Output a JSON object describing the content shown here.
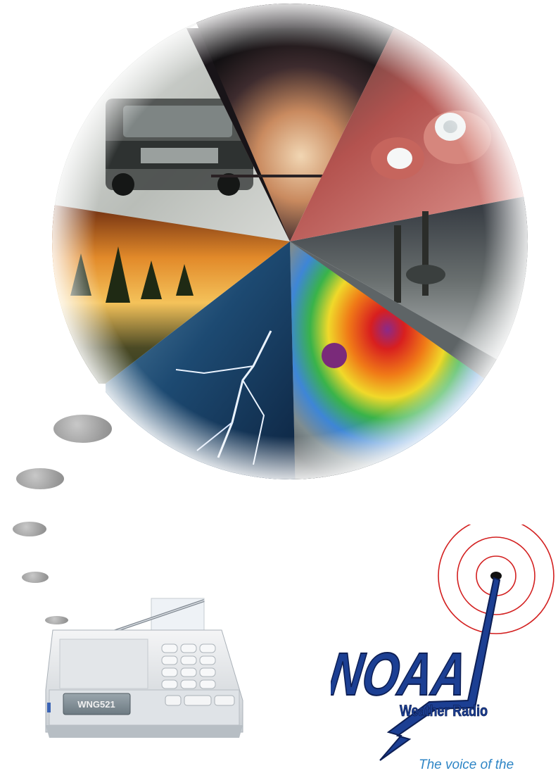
{
  "collage": {
    "segments": [
      {
        "name": "winter-storm-car-photo",
        "label": ""
      },
      {
        "name": "tornado-photo",
        "label": ""
      },
      {
        "name": "hail-in-hands-photo",
        "label": ""
      },
      {
        "name": "flood-photo",
        "label": ""
      },
      {
        "name": "hurricane-satellite-photo",
        "label": ""
      },
      {
        "name": "lightning-photo",
        "label": ""
      },
      {
        "name": "wildfire-photo",
        "label": ""
      }
    ]
  },
  "radio": {
    "model_label": "WNG521"
  },
  "logo": {
    "main": "NOAA",
    "sub": "Weather Radio",
    "colors": {
      "signal_rings": "#d32020",
      "lettering": "#1c3f93",
      "lettering_outline": "#0d1f55"
    }
  },
  "tagline": "The voice of the"
}
